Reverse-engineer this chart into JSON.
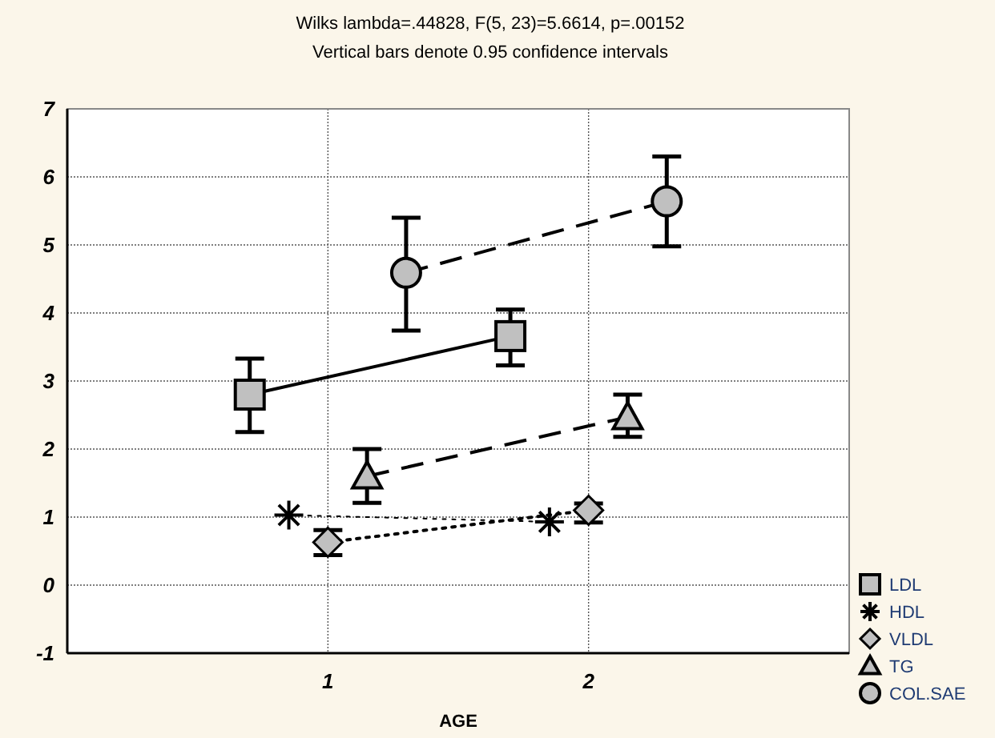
{
  "chart_data": {
    "type": "line",
    "title": "Wilks lambda=.44828, F(5, 23)=5.6614, p=.00152",
    "subtitle": "Vertical bars denote 0.95 confidence intervals",
    "xlabel": "AGE",
    "xlim": [
      0,
      3
    ],
    "xticks": [
      1,
      2
    ],
    "ylim": [
      -1,
      7
    ],
    "yticks": [
      -1,
      0,
      1,
      2,
      3,
      4,
      5,
      6,
      7
    ],
    "grid": true,
    "legend": "bottom right",
    "series": [
      {
        "name": "LDL",
        "color": "#c0c0c0",
        "marker": "square",
        "line_style": "solid",
        "x": [
          0.7,
          1.7
        ],
        "values": [
          2.8,
          3.66
        ],
        "errors": [
          [
            2.25,
            3.33
          ],
          [
            3.23,
            4.05
          ]
        ]
      },
      {
        "name": "HDL",
        "color": "#000000",
        "marker": "cross",
        "line_style": "dotted",
        "x": [
          0.85,
          1.85
        ],
        "values": [
          1.03,
          0.93
        ]
      },
      {
        "name": "VLDL",
        "color": "#c0c0c0",
        "marker": "diamond",
        "line_style": "dotted",
        "x": [
          1.0,
          2.0
        ],
        "values": [
          0.63,
          1.1
        ],
        "errors": [
          [
            0.44,
            0.81
          ],
          [
            0.92,
            1.2
          ]
        ]
      },
      {
        "name": "TG",
        "color": "#c0c0c0",
        "marker": "triangle",
        "line_style": "dashed",
        "x": [
          1.15,
          2.15
        ],
        "values": [
          1.6,
          2.47
        ],
        "errors": [
          [
            1.21,
            2.0
          ],
          [
            2.18,
            2.8
          ]
        ]
      },
      {
        "name": "COL.SAE",
        "color": "#c0c0c0",
        "marker": "circle",
        "line_style": "dashed",
        "x": [
          1.3,
          2.3
        ],
        "values": [
          4.59,
          5.64
        ],
        "errors": [
          [
            3.74,
            5.4
          ],
          [
            4.98,
            6.3
          ]
        ]
      }
    ]
  }
}
